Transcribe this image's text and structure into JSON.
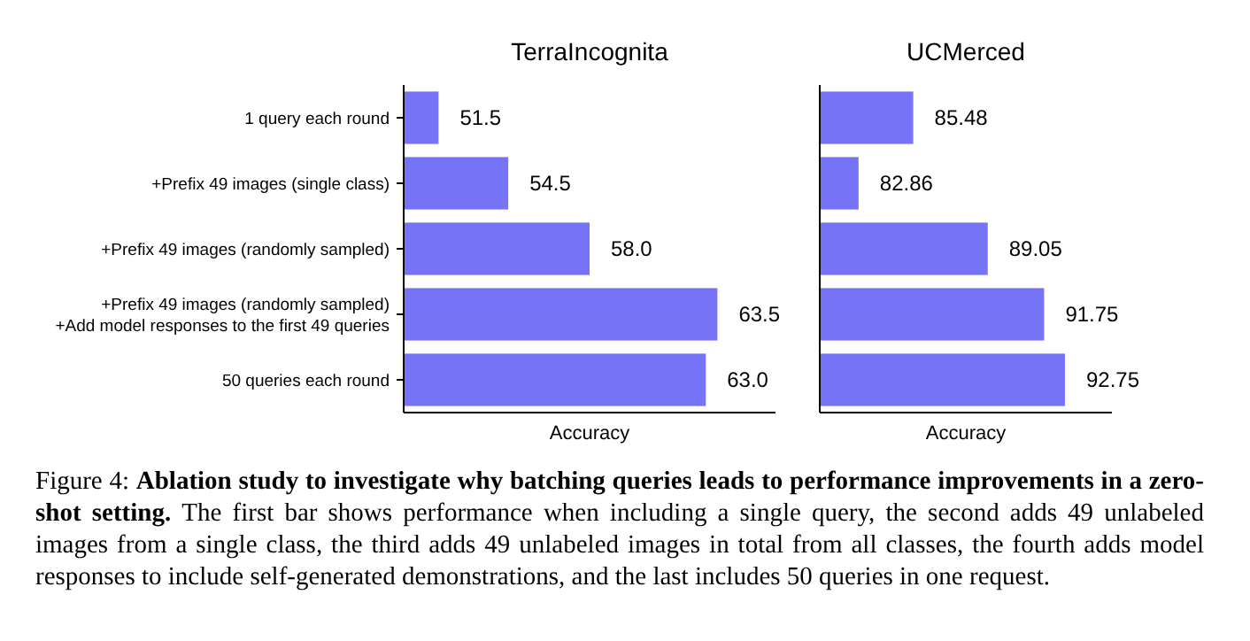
{
  "chart_data": [
    {
      "type": "bar",
      "orientation": "horizontal",
      "title": "TerraIncognita",
      "xlabel": "Accuracy",
      "categories": [
        "1 query each round",
        "+Prefix 49 images (single class)",
        "+Prefix 49 images (randomly sampled)",
        "+Prefix 49 images (randomly sampled)\n+Add model responses to the first 49 queries",
        "50 queries each round"
      ],
      "values": [
        51.5,
        54.5,
        58.0,
        63.5,
        63.0
      ],
      "value_labels": [
        "51.5",
        "54.5",
        "58.0",
        "63.5",
        "63.0"
      ],
      "color": "#7773f7",
      "xlim": [
        50,
        66
      ],
      "tick_labels": "y",
      "annotations": [
        "Figure 4:",
        "Ablation study to investigate why batching queries leads to performance improvements in a zero-shot setting.",
        "The first bar shows performance when including a single query, the second adds 49 unlabeled images from a single class, the third adds 49 unlabeled images in total from all classes, the fourth adds model responses to include self-generated demonstrations, and the last includes 50 queries in one request."
      ]
    },
    {
      "type": "bar",
      "orientation": "horizontal",
      "title": "UCMerced",
      "xlabel": "Accuracy",
      "categories": [
        null,
        null,
        null,
        null,
        null
      ],
      "values": [
        85.48,
        82.86,
        89.05,
        91.75,
        92.75
      ],
      "value_labels": [
        "85.48",
        "82.86",
        "89.05",
        "91.75",
        "92.75"
      ],
      "color": "#7773f7",
      "xlim": [
        81,
        95
      ],
      "tick_labels": false
    }
  ]
}
